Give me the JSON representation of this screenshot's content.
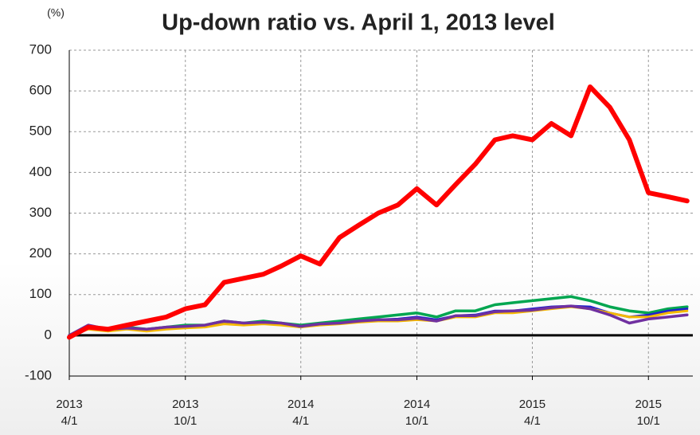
{
  "chart_data": {
    "type": "line",
    "title": "Up-down ratio vs. April 1, 2013 level",
    "y_unit": "(%)",
    "x": [
      "2013-04-01",
      "2013-05-01",
      "2013-06-01",
      "2013-07-01",
      "2013-08-01",
      "2013-09-01",
      "2013-10-01",
      "2013-11-01",
      "2013-12-01",
      "2014-01-01",
      "2014-02-01",
      "2014-03-01",
      "2014-04-01",
      "2014-05-01",
      "2014-06-01",
      "2014-07-01",
      "2014-08-01",
      "2014-09-01",
      "2014-10-01",
      "2014-11-01",
      "2014-12-01",
      "2015-01-01",
      "2015-02-01",
      "2015-03-01",
      "2015-04-01",
      "2015-05-01",
      "2015-06-01",
      "2015-07-01",
      "2015-08-01",
      "2015-09-01",
      "2015-10-01",
      "2015-11-01",
      "2015-12-01"
    ],
    "series": [
      {
        "color": "#00a650",
        "width": 3.5,
        "values": [
          0,
          20,
          15,
          20,
          15,
          20,
          25,
          25,
          35,
          30,
          35,
          30,
          25,
          30,
          35,
          40,
          45,
          50,
          55,
          45,
          60,
          60,
          75,
          80,
          85,
          90,
          95,
          85,
          70,
          60,
          55,
          65,
          70
        ]
      },
      {
        "color": "#2222cc",
        "width": 3,
        "values": [
          0,
          18,
          12,
          18,
          12,
          18,
          20,
          22,
          30,
          28,
          30,
          28,
          20,
          28,
          30,
          35,
          38,
          40,
          45,
          38,
          48,
          50,
          60,
          60,
          65,
          70,
          72,
          70,
          55,
          45,
          50,
          60,
          65
        ]
      },
      {
        "color": "#f5b800",
        "width": 3,
        "values": [
          0,
          15,
          10,
          15,
          10,
          15,
          18,
          20,
          28,
          25,
          28,
          25,
          20,
          25,
          28,
          32,
          35,
          35,
          38,
          35,
          45,
          45,
          55,
          55,
          60,
          65,
          70,
          65,
          55,
          45,
          45,
          55,
          60
        ]
      },
      {
        "color": "#7030a0",
        "width": 3.5,
        "values": [
          0,
          25,
          15,
          18,
          15,
          20,
          22,
          25,
          35,
          30,
          32,
          30,
          22,
          28,
          30,
          35,
          38,
          38,
          42,
          35,
          48,
          48,
          58,
          60,
          62,
          68,
          72,
          65,
          50,
          30,
          40,
          45,
          50
        ]
      },
      {
        "color": "#ff0000",
        "width": 6,
        "values": [
          -5,
          20,
          15,
          25,
          35,
          45,
          65,
          75,
          130,
          140,
          150,
          170,
          195,
          175,
          240,
          270,
          300,
          320,
          360,
          320,
          370,
          420,
          480,
          490,
          480,
          520,
          490,
          610,
          560,
          480,
          350,
          340,
          330
        ]
      }
    ],
    "xlim": [
      "2013-04-01",
      "2015-12-10"
    ],
    "xticks": [
      {
        "value": "2013-04-01",
        "label": [
          "2013",
          "4/1"
        ]
      },
      {
        "value": "2013-10-01",
        "label": [
          "2013",
          "10/1"
        ]
      },
      {
        "value": "2014-04-01",
        "label": [
          "2014",
          "4/1"
        ]
      },
      {
        "value": "2014-10-01",
        "label": [
          "2014",
          "10/1"
        ]
      },
      {
        "value": "2015-04-01",
        "label": [
          "2015",
          "4/1"
        ]
      },
      {
        "value": "2015-10-01",
        "label": [
          "2015",
          "10/1"
        ]
      }
    ],
    "ylim": [
      -100,
      700
    ],
    "yticks": [
      -100,
      0,
      100,
      200,
      300,
      400,
      500,
      600,
      700
    ],
    "grid": true
  }
}
